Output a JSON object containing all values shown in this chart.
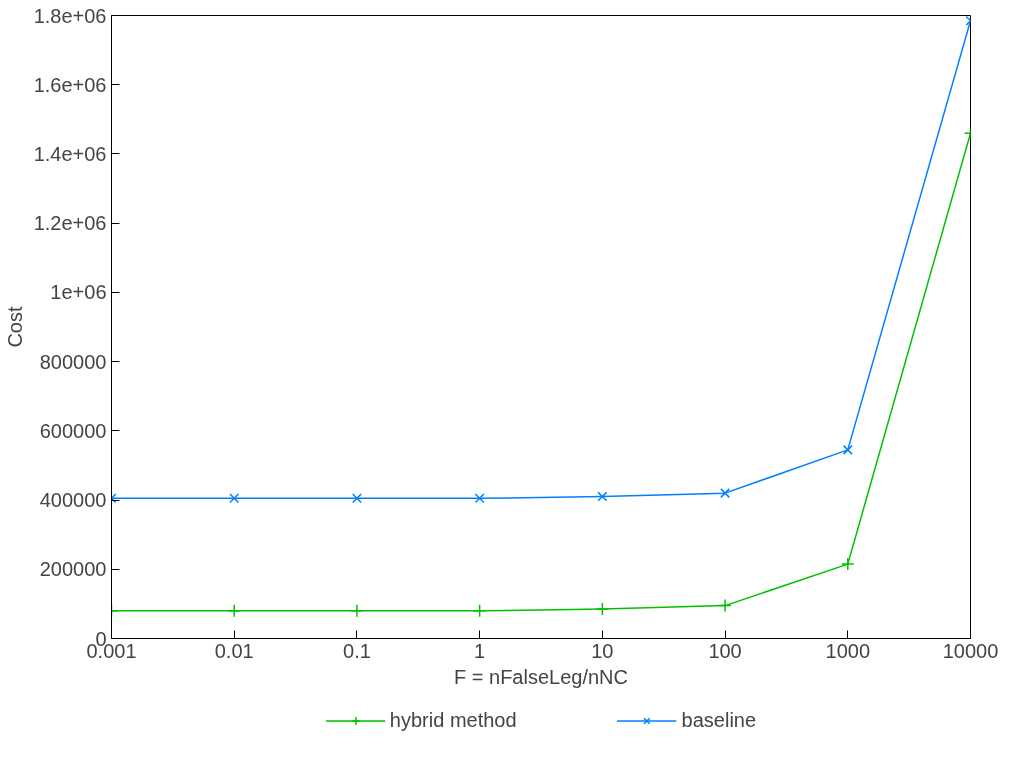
{
  "chart_data": {
    "type": "line",
    "xlabel": "F = nFalseLeg/nNC",
    "ylabel": "Cost",
    "log": "x",
    "x": [
      0.001,
      0.01,
      0.1,
      1,
      10,
      100,
      1000,
      10000
    ],
    "xlim": [
      0.001,
      10000
    ],
    "xticks": [
      0.001,
      0.01,
      0.1,
      1,
      10,
      100,
      1000,
      10000
    ],
    "ylim": [
      0,
      1800000
    ],
    "yticks": [
      0,
      200000,
      400000,
      600000,
      800000,
      {
        "value": 1000000,
        "label": "1e+06"
      },
      {
        "value": 1200000,
        "label": "1.2e+06"
      },
      {
        "value": 1400000,
        "label": "1.4e+06"
      },
      {
        "value": 1600000,
        "label": "1.6e+06"
      },
      {
        "value": 1800000,
        "label": "1.8e+06"
      }
    ],
    "grid": false,
    "legend": "bottom",
    "series": [
      {
        "name": "hybrid method",
        "color": "#00c000",
        "marker": "cross",
        "values": [
          80000,
          80000,
          80000,
          80000,
          85000,
          95000,
          215000,
          1460000
        ]
      },
      {
        "name": "baseline",
        "color": "#0080ff",
        "marker": "x",
        "values": [
          405000,
          405000,
          405000,
          405000,
          410000,
          420000,
          545000,
          1785000
        ]
      }
    ]
  }
}
